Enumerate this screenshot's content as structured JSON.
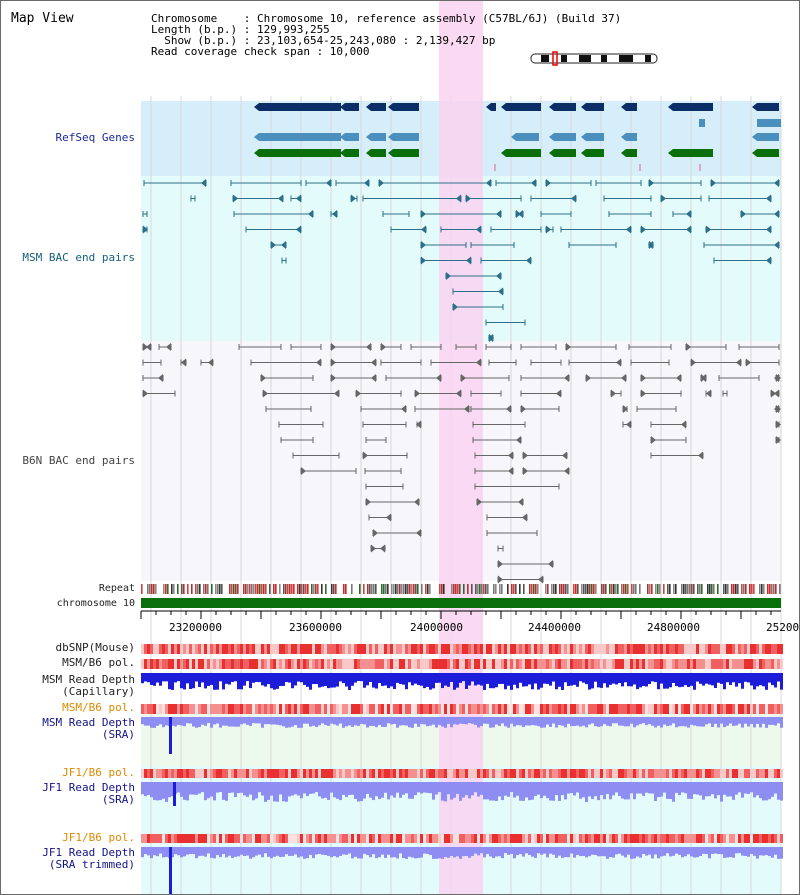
{
  "view_title": "Map View",
  "header": {
    "chromosome": "Chromosome    : Chromosome 10, reference assembly (C57BL/6J) (Build 37)",
    "length": "Length (b.p.) : 129,993,255",
    "show": "  Show (b.p.) : 23,103,654-25,243,080 : 2,139,427 bp",
    "coverage": "Read coverage check span : 10,000"
  },
  "tracks": {
    "refseq": "RefSeq Genes",
    "msm_bac": "MSM BAC end pairs",
    "b6n_bac": "B6N BAC end pairs",
    "repeat": "Repeat",
    "chromosome": "chromosome 10",
    "dbsnp": "dbSNP(Mouse)",
    "msm_b6_pol_1": "MSM/B6 pol.",
    "msm_depth_cap": "MSM Read Depth\n(Capillary)",
    "msm_b6_pol_2": "MSM/B6 pol.",
    "msm_depth_sra": "MSM Read Depth\n(SRA)",
    "jf1_b6_pol_1": "JF1/B6 pol.",
    "jf1_depth_sra": "JF1 Read Depth\n(SRA)",
    "jf1_b6_pol_2": "JF1/B6 pol.",
    "jf1_depth_trim": "JF1 Read Depth\n(SRA trimmed)"
  },
  "axis_ticks": [
    "23200000",
    "23600000",
    "24000000",
    "24400000",
    "24800000",
    "25200000"
  ],
  "colors": {
    "highlight": "#f9d3f1",
    "refseq_bg": "#d6eef9",
    "bac_bg": "#e3fbfb",
    "depth_bg": "#eef9ee",
    "gene_dark": "#0b2e66",
    "gene_mid": "#4a8fbd",
    "gene_green": "#0a6e0a",
    "chromosome_bar": "#0a6e0a",
    "depth_blue": "#1c1cd9",
    "depth_light": "#8e8ef2"
  }
}
